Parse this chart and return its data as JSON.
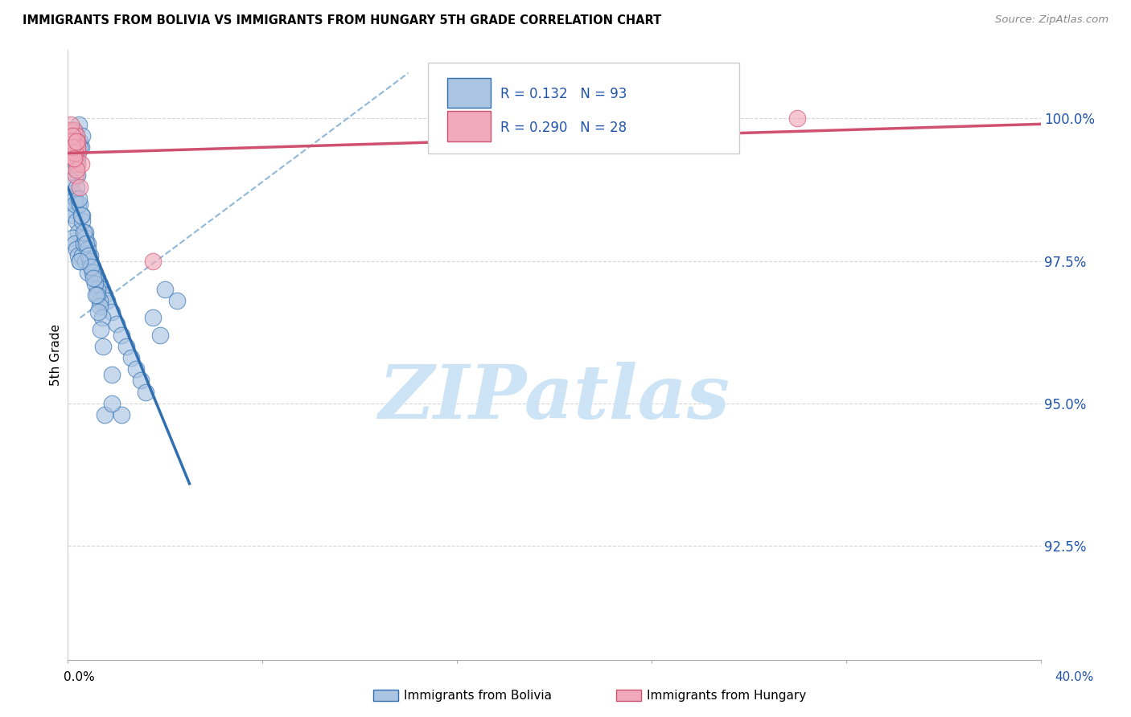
{
  "title": "IMMIGRANTS FROM BOLIVIA VS IMMIGRANTS FROM HUNGARY 5TH GRADE CORRELATION CHART",
  "source": "Source: ZipAtlas.com",
  "ylabel": "5th Grade",
  "xlim": [
    0.0,
    40.0
  ],
  "ylim": [
    90.5,
    101.2
  ],
  "legend_r_bolivia": "0.132",
  "legend_n_bolivia": "93",
  "legend_r_hungary": "0.290",
  "legend_n_hungary": "28",
  "bolivia_color": "#aac4e2",
  "hungary_color": "#f0aabb",
  "bolivia_line_color": "#3070b0",
  "hungary_line_color": "#d05070",
  "dashed_line_color": "#90b8d8",
  "watermark_text": "ZIPatlas",
  "watermark_color": "#cce4f5",
  "bolivia_scatter_x": [
    0.15,
    0.2,
    0.25,
    0.3,
    0.35,
    0.4,
    0.45,
    0.5,
    0.55,
    0.6,
    0.1,
    0.2,
    0.3,
    0.4,
    0.5,
    0.12,
    0.18,
    0.25,
    0.32,
    0.38,
    0.15,
    0.22,
    0.28,
    0.35,
    0.42,
    0.18,
    0.24,
    0.3,
    0.36,
    0.43,
    0.2,
    0.28,
    0.35,
    0.42,
    0.5,
    0.58,
    0.65,
    0.72,
    0.8,
    0.9,
    1.0,
    1.1,
    1.2,
    1.3,
    1.4,
    1.5,
    1.6,
    1.8,
    2.0,
    2.2,
    2.4,
    2.6,
    2.8,
    3.0,
    3.2,
    3.5,
    4.0,
    4.5,
    1.5,
    1.8,
    0.6,
    0.7,
    0.8,
    0.9,
    1.0,
    1.1,
    1.2,
    1.3,
    0.5,
    0.6,
    0.7,
    0.8,
    0.9,
    1.0,
    1.1,
    1.2,
    1.3,
    1.4,
    0.45,
    0.55,
    0.65,
    0.75,
    0.85,
    0.95,
    1.05,
    1.15,
    1.25,
    1.35,
    1.45,
    0.5,
    2.2,
    3.8,
    1.8
  ],
  "bolivia_scatter_y": [
    99.8,
    99.7,
    99.8,
    99.6,
    99.7,
    99.5,
    99.9,
    99.6,
    99.5,
    99.7,
    99.8,
    99.4,
    99.6,
    99.3,
    99.5,
    99.7,
    99.5,
    99.3,
    99.2,
    99.0,
    98.9,
    98.7,
    98.6,
    98.8,
    98.5,
    98.4,
    98.3,
    98.5,
    98.2,
    98.0,
    97.9,
    97.8,
    97.7,
    97.6,
    97.5,
    97.6,
    97.8,
    97.5,
    97.3,
    97.5,
    97.4,
    97.3,
    97.2,
    97.1,
    97.0,
    96.9,
    96.8,
    96.6,
    96.4,
    96.2,
    96.0,
    95.8,
    95.6,
    95.4,
    95.2,
    96.5,
    97.0,
    96.8,
    94.8,
    95.5,
    98.3,
    98.0,
    97.8,
    97.6,
    97.4,
    97.2,
    97.0,
    96.8,
    98.5,
    98.2,
    97.9,
    97.7,
    97.5,
    97.3,
    97.1,
    96.9,
    96.7,
    96.5,
    98.6,
    98.3,
    98.0,
    97.8,
    97.6,
    97.4,
    97.2,
    96.9,
    96.6,
    96.3,
    96.0,
    97.5,
    94.8,
    96.2,
    95.0
  ],
  "hungary_scatter_x": [
    0.1,
    0.15,
    0.2,
    0.25,
    0.3,
    0.35,
    0.4,
    0.12,
    0.18,
    0.22,
    0.28,
    0.32,
    0.38,
    0.42,
    0.16,
    0.24,
    0.33,
    0.4,
    0.48,
    0.55,
    0.2,
    0.28,
    0.36,
    3.5,
    0.18,
    0.26,
    0.35,
    30.0
  ],
  "hungary_scatter_y": [
    99.8,
    99.7,
    99.6,
    99.8,
    99.5,
    99.7,
    99.6,
    99.9,
    99.4,
    99.6,
    99.3,
    99.5,
    99.2,
    99.4,
    99.6,
    99.3,
    99.0,
    99.5,
    98.8,
    99.2,
    99.7,
    99.4,
    99.1,
    97.5,
    99.5,
    99.3,
    99.6,
    100.0
  ]
}
